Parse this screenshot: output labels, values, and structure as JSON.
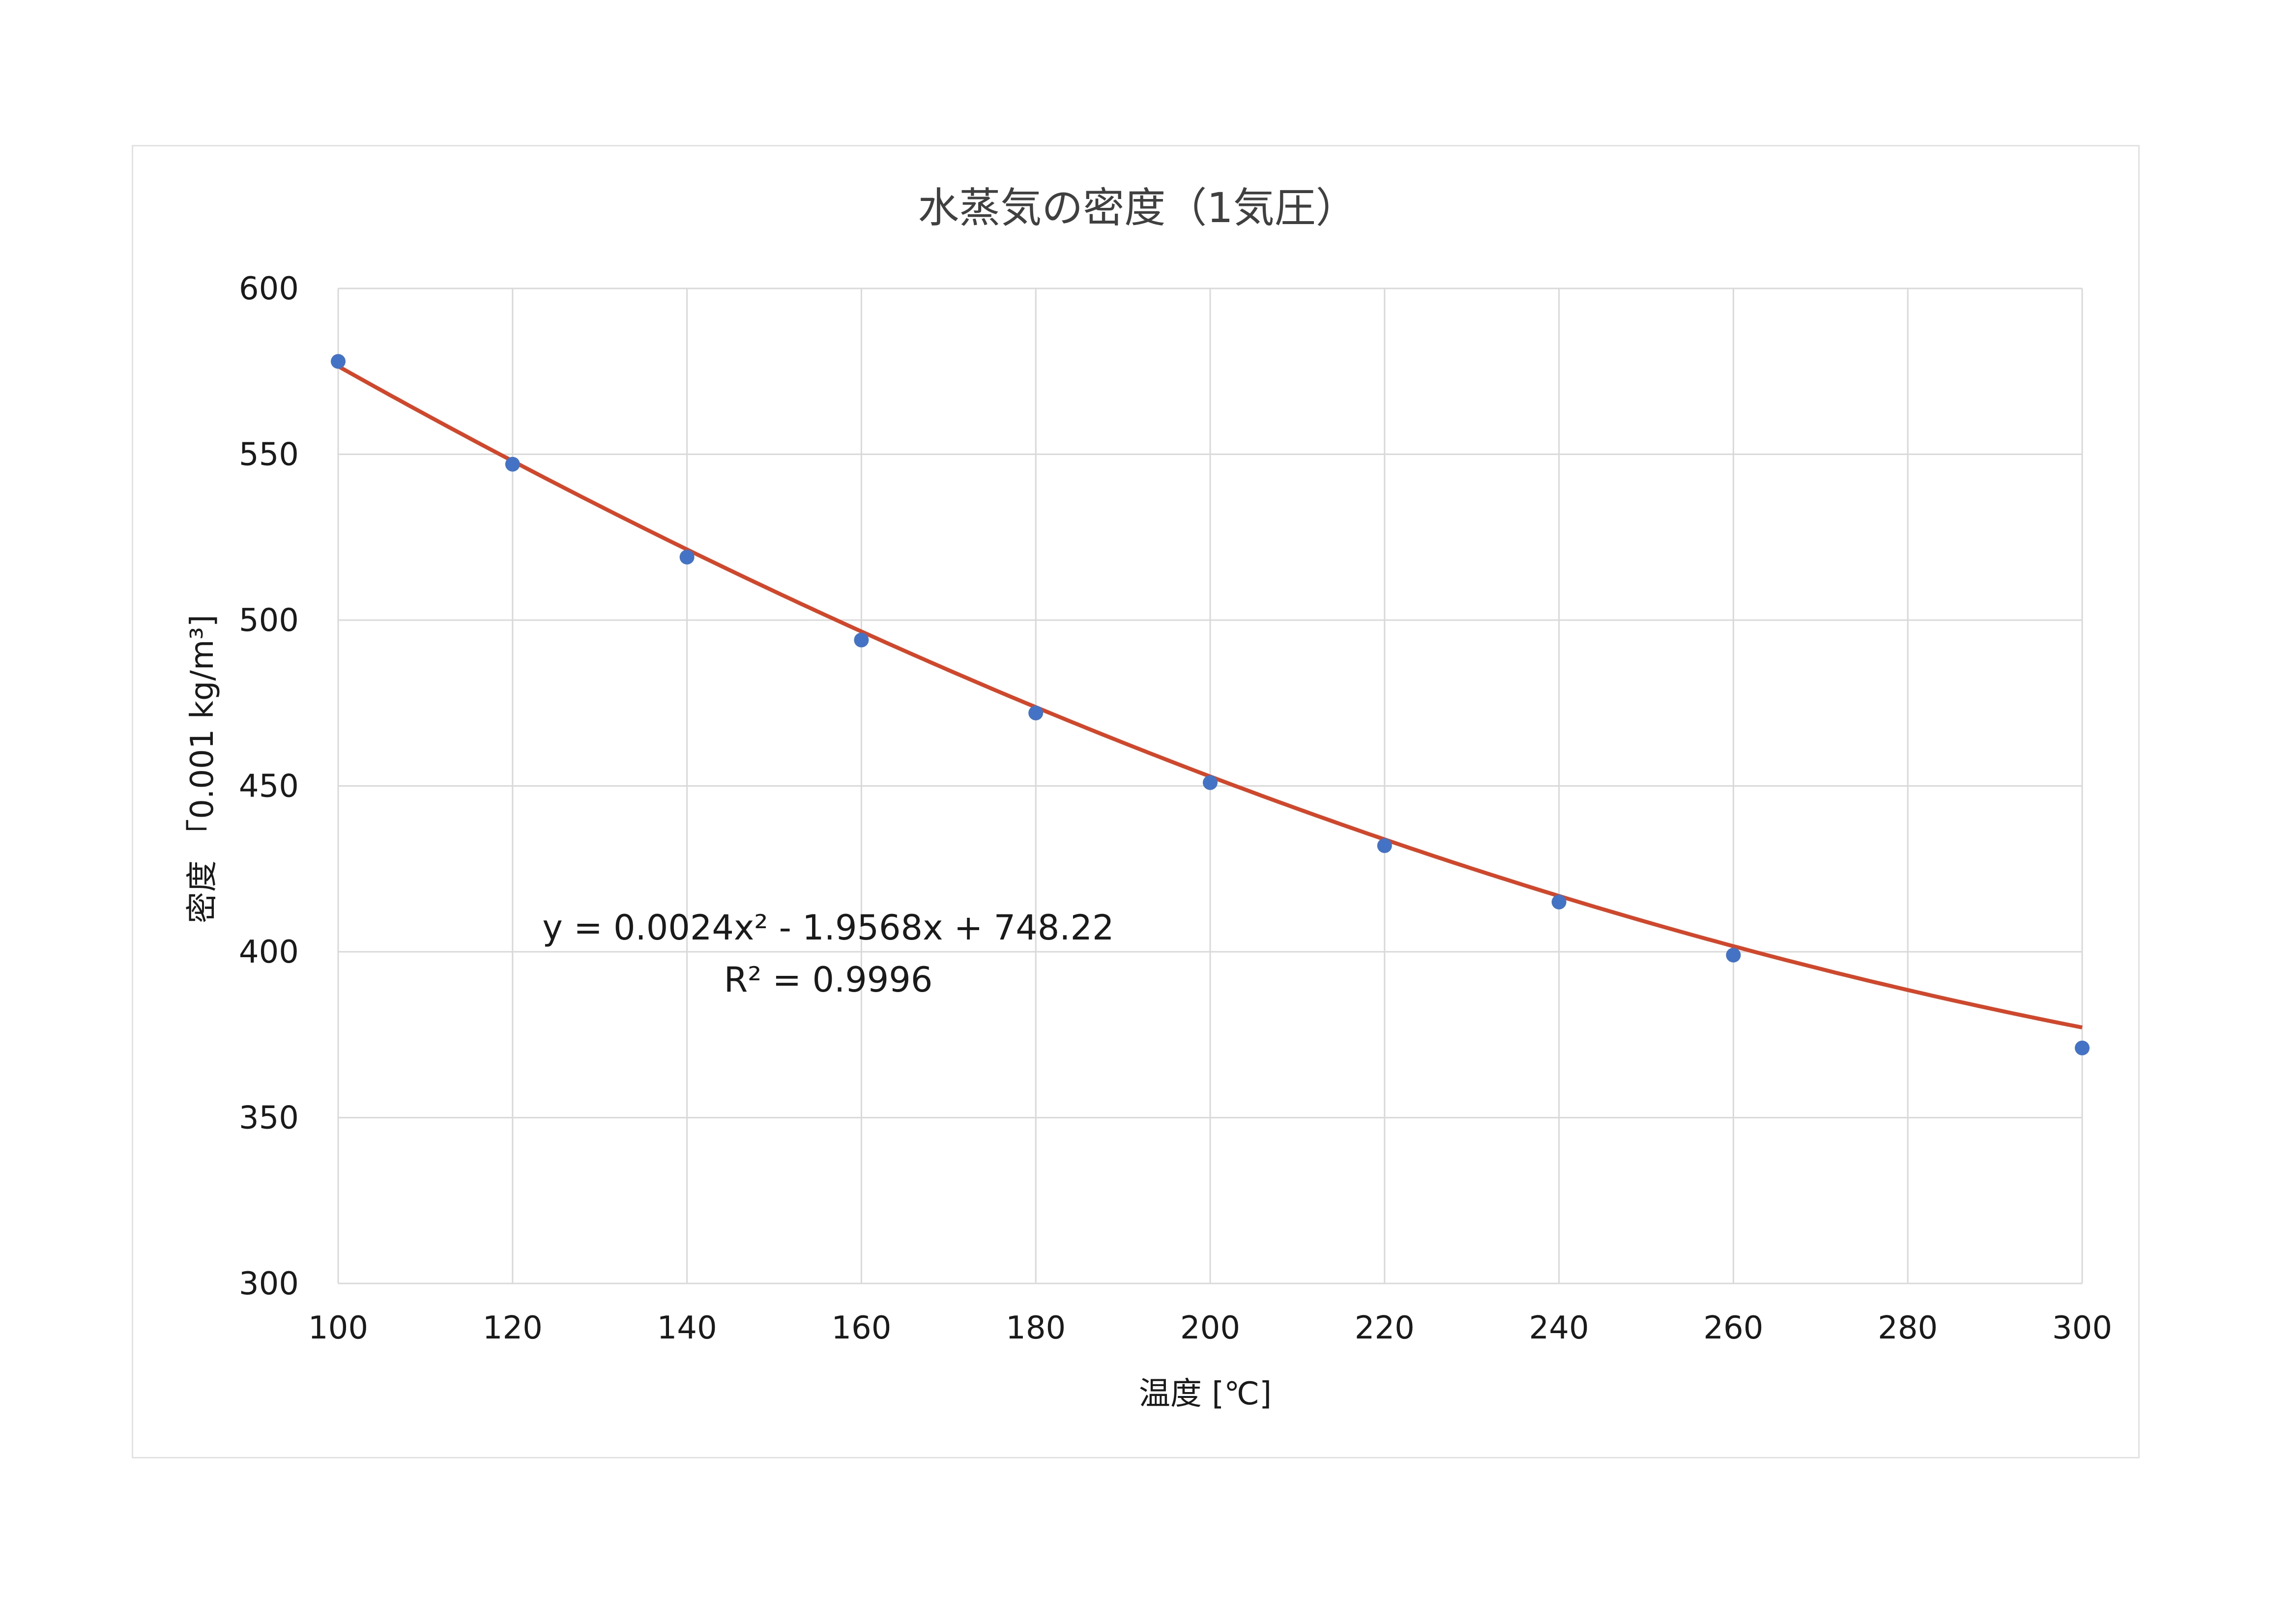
{
  "chart_data": {
    "type": "scatter",
    "title": "水蒸気の密度（1気圧）",
    "xlabel": "温度 [℃]",
    "ylabel": "密度 「0.001 kg/m³]",
    "xlim": [
      100,
      300
    ],
    "ylim": [
      300,
      600
    ],
    "xticks": [
      100,
      120,
      140,
      160,
      180,
      200,
      220,
      240,
      260,
      280,
      300
    ],
    "yticks": [
      300,
      350,
      400,
      450,
      500,
      550,
      600
    ],
    "grid": true,
    "legend": "none",
    "series": [
      {
        "color": "#4472c4",
        "points": [
          {
            "x": 100,
            "y": 578
          },
          {
            "x": 120,
            "y": 547
          },
          {
            "x": 140,
            "y": 519
          },
          {
            "x": 160,
            "y": 494
          },
          {
            "x": 180,
            "y": 472
          },
          {
            "x": 200,
            "y": 451
          },
          {
            "x": 220,
            "y": 432
          },
          {
            "x": 240,
            "y": 415
          },
          {
            "x": 260,
            "y": 399
          },
          {
            "x": 300,
            "y": 371
          }
        ]
      }
    ],
    "trendline": {
      "type": "polynomial",
      "order": 2,
      "coefficients": [
        0.0024,
        -1.9568,
        748.22
      ],
      "color": "#d0472b",
      "equation": "y = 0.0024x² - 1.9568x + 748.22",
      "r_squared": "R² = 0.9996"
    }
  }
}
